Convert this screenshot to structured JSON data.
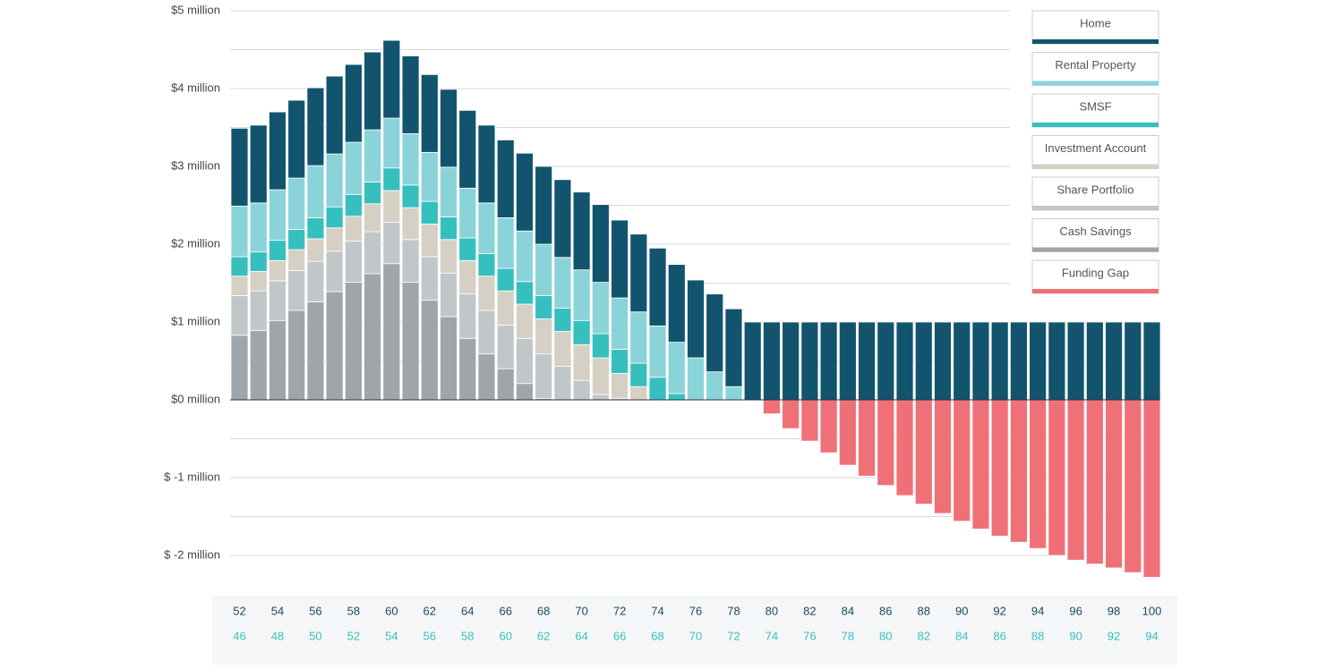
{
  "chart_data": {
    "type": "stacked-bar",
    "categories": [
      52,
      null,
      54,
      null,
      56,
      null,
      58,
      null,
      60,
      null,
      62,
      null,
      64,
      null,
      66,
      null,
      68,
      null,
      70,
      null,
      72,
      null,
      74,
      null,
      76,
      null,
      78,
      null,
      80,
      null,
      82,
      null,
      84,
      null,
      86,
      null,
      88,
      null,
      90,
      null,
      92,
      null,
      94,
      null,
      96,
      null,
      98,
      null,
      100
    ],
    "partner_ages": [
      46,
      null,
      48,
      null,
      50,
      null,
      52,
      null,
      54,
      null,
      56,
      null,
      58,
      null,
      60,
      null,
      62,
      null,
      64,
      null,
      66,
      null,
      68,
      null,
      70,
      null,
      72,
      null,
      74,
      null,
      76,
      null,
      78,
      null,
      80,
      null,
      82,
      null,
      84,
      null,
      86,
      null,
      88,
      null,
      90,
      null,
      92,
      null,
      94
    ],
    "series": [
      {
        "name": "Home",
        "color": "#12546e",
        "values": [
          1,
          1,
          1,
          1,
          1,
          1,
          1,
          1,
          1,
          1,
          1,
          1,
          1,
          1,
          1,
          1,
          1,
          1,
          1,
          1,
          1,
          1,
          1,
          1,
          1,
          1,
          1,
          1,
          1,
          1,
          1,
          1,
          1,
          1,
          1,
          1,
          1,
          1,
          1,
          1,
          1,
          1,
          1,
          1,
          1,
          1,
          1,
          1,
          1
        ]
      },
      {
        "name": "Rental Property",
        "color": "#8ad3d9",
        "values": [
          0.65,
          0.63,
          0.65,
          0.66,
          0.67,
          0.68,
          0.67,
          0.67,
          0.64,
          0.66,
          0.63,
          0.64,
          0.64,
          0.65,
          0.65,
          0.65,
          0.66,
          0.65,
          0.65,
          0.66,
          0.66,
          0.66,
          0.66,
          0.66,
          0.54,
          0.36,
          0.17,
          0,
          0,
          0,
          0,
          0,
          0,
          0,
          0,
          0,
          0,
          0,
          0,
          0,
          0,
          0,
          0,
          0,
          0,
          0,
          0,
          0,
          0
        ]
      },
      {
        "name": "SMSF",
        "color": "#35bfbf",
        "values": [
          0.25,
          0.25,
          0.26,
          0.26,
          0.27,
          0.27,
          0.28,
          0.28,
          0.29,
          0.29,
          0.29,
          0.29,
          0.29,
          0.29,
          0.29,
          0.29,
          0.3,
          0.3,
          0.31,
          0.31,
          0.31,
          0.3,
          0.29,
          0.08,
          0,
          0,
          0,
          0,
          0,
          0,
          0,
          0,
          0,
          0,
          0,
          0,
          0,
          0,
          0,
          0,
          0,
          0,
          0,
          0,
          0,
          0,
          0,
          0,
          0
        ]
      },
      {
        "name": "Investment Account",
        "color": "#d5d0c3",
        "values": [
          0.25,
          0.25,
          0.26,
          0.27,
          0.29,
          0.3,
          0.32,
          0.36,
          0.41,
          0.41,
          0.42,
          0.43,
          0.43,
          0.44,
          0.44,
          0.44,
          0.45,
          0.45,
          0.46,
          0.47,
          0.32,
          0.17,
          0,
          0,
          0,
          0,
          0,
          0,
          0,
          0,
          0,
          0,
          0,
          0,
          0,
          0,
          0,
          0,
          0,
          0,
          0,
          0,
          0,
          0,
          0,
          0,
          0,
          0,
          0
        ]
      },
      {
        "name": "Share Portfolio",
        "color": "#c1c6c9",
        "values": [
          0.51,
          0.51,
          0.51,
          0.51,
          0.52,
          0.52,
          0.53,
          0.54,
          0.53,
          0.55,
          0.56,
          0.56,
          0.57,
          0.56,
          0.56,
          0.58,
          0.57,
          0.43,
          0.25,
          0.07,
          0.02,
          0,
          0,
          0,
          0,
          0,
          0,
          0,
          0,
          0,
          0,
          0,
          0,
          0,
          0,
          0,
          0,
          0,
          0,
          0,
          0,
          0,
          0,
          0,
          0,
          0,
          0,
          0,
          0
        ]
      },
      {
        "name": "Cash Savings",
        "color": "#9ea6a9",
        "values": [
          0.83,
          0.89,
          1.02,
          1.15,
          1.26,
          1.39,
          1.51,
          1.62,
          1.75,
          1.51,
          1.28,
          1.07,
          0.79,
          0.59,
          0.4,
          0.21,
          0.02,
          0,
          0,
          0,
          0,
          0,
          0,
          0,
          0,
          0,
          0,
          0,
          0,
          0,
          0,
          0,
          0,
          0,
          0,
          0,
          0,
          0,
          0,
          0,
          0,
          0,
          0,
          0,
          0,
          0,
          0,
          0,
          0
        ]
      },
      {
        "name": "Funding Gap",
        "color": "#f07078",
        "values": [
          0,
          0,
          0,
          0,
          0,
          0,
          0,
          0,
          0,
          0,
          0,
          0,
          0,
          0,
          0,
          0,
          0,
          0,
          0,
          0,
          0,
          0,
          0,
          0,
          0,
          0,
          0,
          0,
          -0.18,
          -0.37,
          -0.53,
          -0.68,
          -0.84,
          -0.98,
          -1.1,
          -1.23,
          -1.34,
          -1.46,
          -1.56,
          -1.66,
          -1.75,
          -1.83,
          -1.91,
          -2.0,
          -2.06,
          -2.11,
          -2.16,
          -2.22,
          -2.28
        ]
      }
    ],
    "ylim": [
      -2.3,
      5
    ],
    "yticks": [
      {
        "value": -2,
        "label": "$ -2 million"
      },
      {
        "value": -1,
        "label": "$ -1 million"
      },
      {
        "value": 0,
        "label": "$0 million"
      },
      {
        "value": 1,
        "label": "$1 million"
      },
      {
        "value": 2,
        "label": "$2 million"
      },
      {
        "value": 3,
        "label": "$3 million"
      },
      {
        "value": 4,
        "label": "$4 million"
      },
      {
        "value": 5,
        "label": "$5 million"
      }
    ],
    "minor_yticks": [
      -1.5,
      -0.5,
      0.5,
      1.5,
      2.5,
      3.5,
      4.5
    ],
    "grid": true,
    "legend": "top-right"
  }
}
